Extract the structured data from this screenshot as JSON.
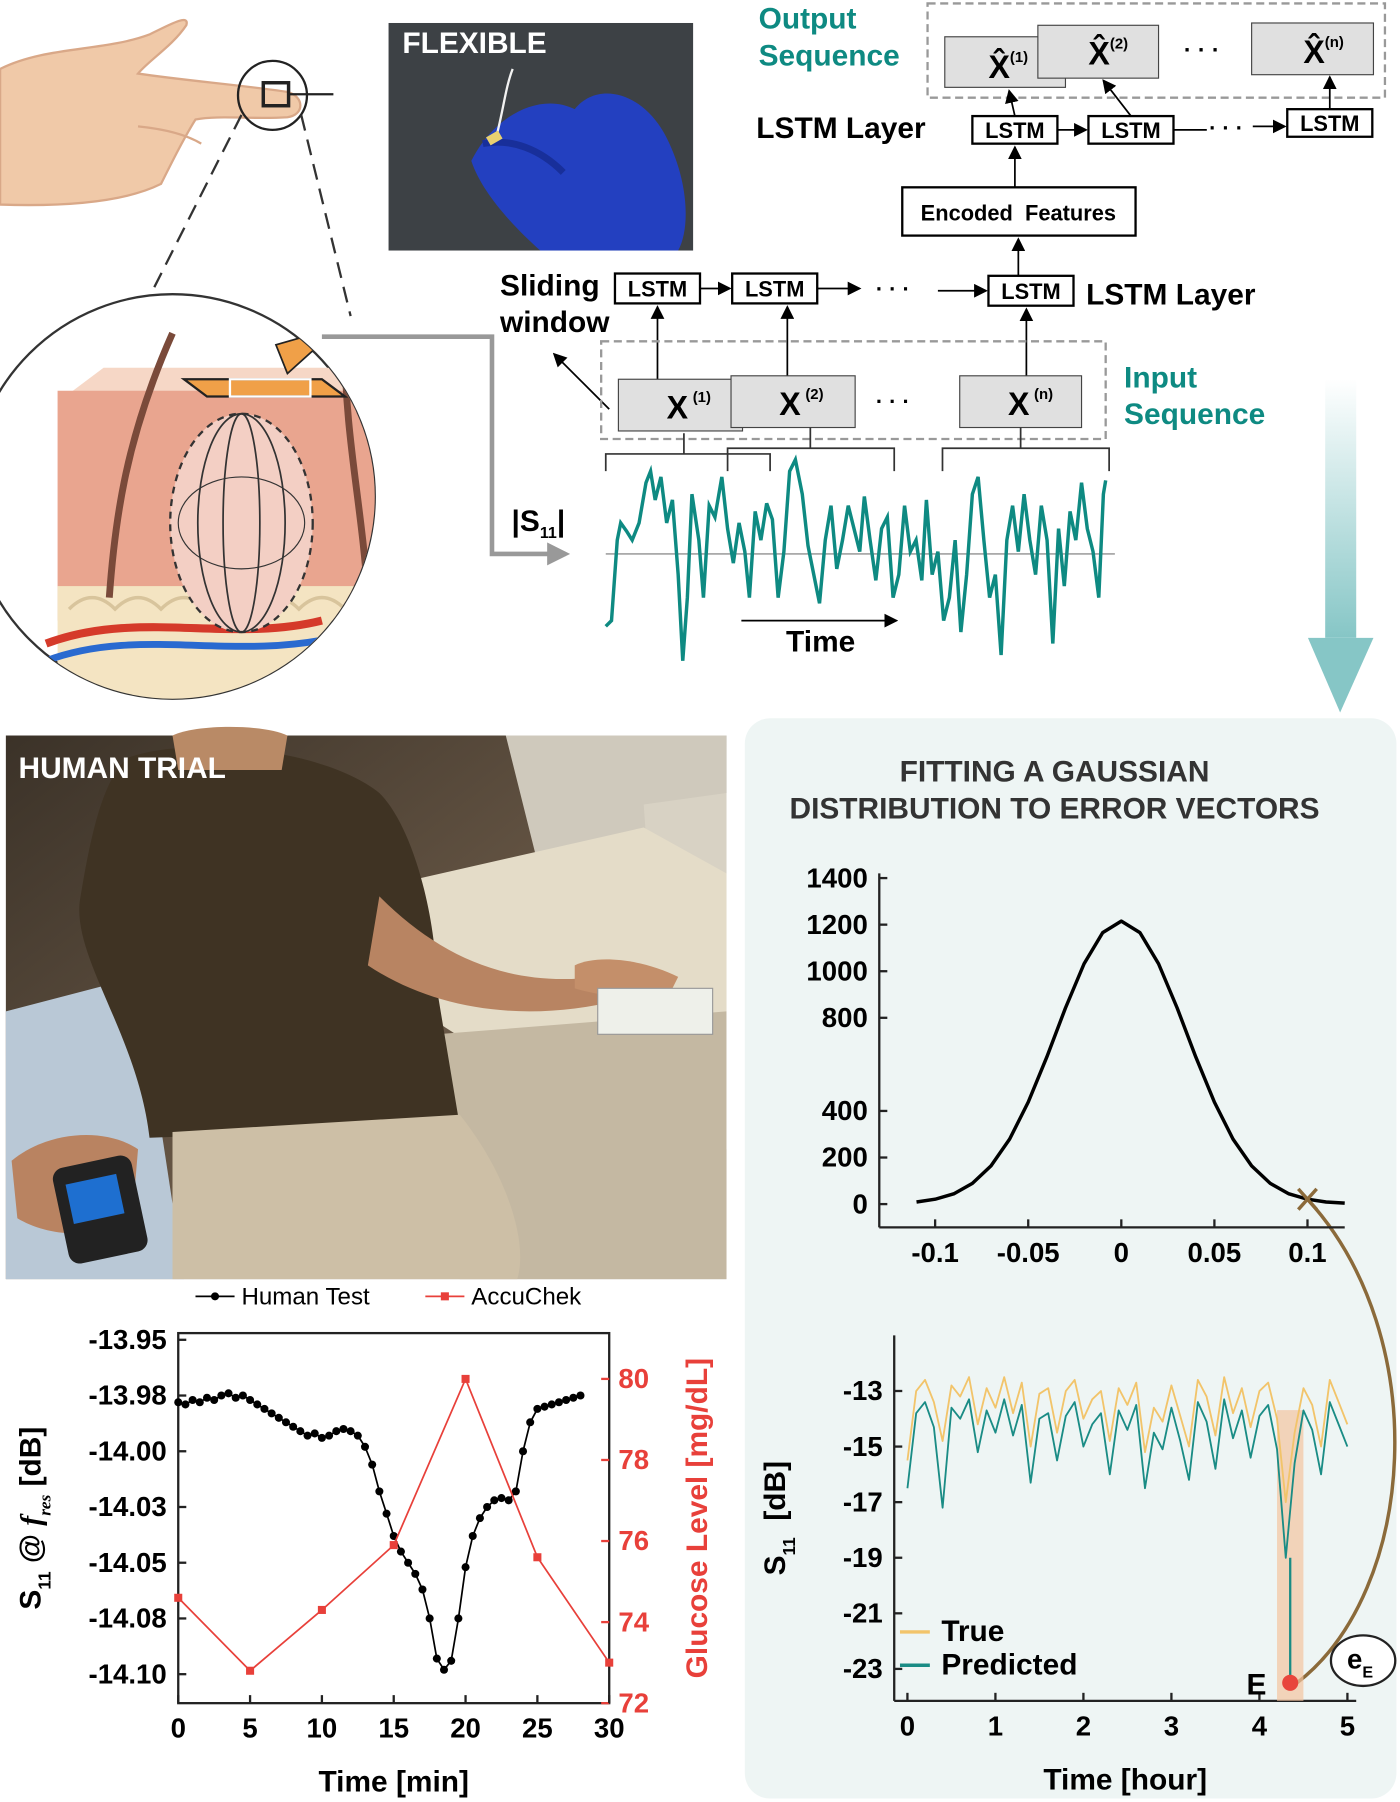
{
  "chart_data": [
    {
      "type": "line",
      "x_label": "Time [min]",
      "y_label": [
        "S",
        "11",
        " @ ",
        "f",
        "res",
        " [dB]"
      ],
      "y2_label": "Glucose Level [mg/dL]",
      "xlim": [
        0,
        30
      ],
      "xticks": [
        0,
        5,
        10,
        15,
        20,
        25,
        30
      ],
      "ylim": [
        -14.113,
        -13.947
      ],
      "yticks": [
        -13.95,
        {
          "value": -13.975,
          "label": "-13.98"
        },
        {
          "value": -14.0,
          "label": "-14.00"
        },
        {
          "value": -14.025,
          "label": "-14.03"
        },
        -14.05,
        {
          "value": -14.075,
          "label": "-14.08"
        },
        {
          "value": -14.1,
          "label": "-14.10"
        }
      ],
      "y2lim": [
        72,
        81.13
      ],
      "y2ticks": [
        72,
        74,
        76,
        78,
        80
      ],
      "y2_color": "#e8403a",
      "legend": "top",
      "series": [
        {
          "name": "Human Test",
          "color": "#000000",
          "marker": "circle",
          "x": [
            0,
            0.5,
            1,
            1.5,
            2,
            2.5,
            3,
            3.5,
            4,
            4.5,
            5,
            5.5,
            6,
            6.5,
            7,
            7.5,
            8,
            8.5,
            9,
            9.5,
            10,
            10.5,
            11,
            11.5,
            12,
            12.5,
            13,
            13.5,
            14,
            14.5,
            15,
            15.5,
            16,
            16.5,
            17,
            17.5,
            18,
            18.5,
            19,
            19.5,
            20,
            20.5,
            21,
            21.5,
            22,
            22.5,
            23,
            23.5,
            24,
            24.5,
            25,
            25.5,
            26,
            26.5,
            27,
            27.5,
            28
          ],
          "values": [
            -13.978,
            -13.979,
            -13.977,
            -13.978,
            -13.976,
            -13.977,
            -13.975,
            -13.974,
            -13.976,
            -13.975,
            -13.977,
            -13.979,
            -13.981,
            -13.983,
            -13.985,
            -13.987,
            -13.989,
            -13.991,
            -13.993,
            -13.992,
            -13.994,
            -13.993,
            -13.991,
            -13.99,
            -13.991,
            -13.993,
            -13.998,
            -14.006,
            -14.018,
            -14.028,
            -14.038,
            -14.045,
            -14.05,
            -14.055,
            -14.062,
            -14.075,
            -14.093,
            -14.098,
            -14.094,
            -14.075,
            -14.052,
            -14.038,
            -14.03,
            -14.025,
            -14.022,
            -14.021,
            -14.022,
            -14.018,
            -14.0,
            -13.987,
            -13.981,
            -13.98,
            -13.979,
            -13.978,
            -13.977,
            -13.976,
            -13.975
          ]
        },
        {
          "name": "AccuChek",
          "color": "#e8403a",
          "marker": "square",
          "axis": "y2",
          "x": [
            0,
            5,
            10,
            15,
            20,
            25,
            30
          ],
          "values": [
            74.6,
            72.8,
            74.3,
            75.9,
            80,
            75.6,
            73
          ]
        }
      ]
    },
    {
      "type": "line",
      "title": [
        "FITTING A GAUSSIAN",
        "DISTRIBUTION TO ERROR VECTORS"
      ],
      "x": [
        -0.11,
        -0.1,
        -0.09,
        -0.08,
        -0.07,
        -0.06,
        -0.05,
        -0.04,
        -0.03,
        -0.02,
        -0.01,
        0,
        0.01,
        0.02,
        0.03,
        0.04,
        0.05,
        0.06,
        0.07,
        0.08,
        0.09,
        0.1,
        0.11,
        0.12
      ],
      "xlim": [
        -0.13,
        0.12
      ],
      "xticks": [
        -0.1,
        -0.05,
        0,
        0.05,
        0.1
      ],
      "ylim": [
        -100,
        1420
      ],
      "yticks": [
        0,
        200,
        400,
        800,
        1000,
        1200,
        1400
      ],
      "series": [
        {
          "color": "#000000",
          "values": [
            9,
            21,
            44,
            89,
            164,
            279,
            438,
            632,
            842,
            1032,
            1166,
            1215,
            1166,
            1032,
            842,
            632,
            438,
            279,
            164,
            89,
            44,
            21,
            9,
            4
          ]
        }
      ],
      "marker": {
        "x": 0.1,
        "value": 21,
        "color": "#8b6a3a"
      }
    },
    {
      "type": "line",
      "x_label": "Time [hour]",
      "y_label": [
        "S",
        "11",
        "  [dB]"
      ],
      "x": [
        0,
        0.1,
        0.2,
        0.3,
        0.4,
        0.5,
        0.6,
        0.7,
        0.8,
        0.9,
        1,
        1.1,
        1.2,
        1.3,
        1.4,
        1.5,
        1.6,
        1.7,
        1.8,
        1.9,
        2,
        2.1,
        2.2,
        2.3,
        2.4,
        2.5,
        2.6,
        2.7,
        2.8,
        2.9,
        3,
        3.1,
        3.2,
        3.3,
        3.4,
        3.5,
        3.6,
        3.7,
        3.8,
        3.9,
        4,
        4.1,
        4.2,
        4.3,
        4.4,
        4.5,
        4.6,
        4.7,
        4.8,
        4.9,
        5
      ],
      "xlim": [
        -0.15,
        5.1
      ],
      "xticks": [
        0,
        1,
        2,
        3,
        4,
        5
      ],
      "ylim": [
        -24.15,
        -11
      ],
      "yticks": [
        -13,
        -15,
        -17,
        -19,
        -21,
        -23
      ],
      "legend": "lower left",
      "highlight_x": [
        4.2,
        4.5
      ],
      "series": [
        {
          "name": "True",
          "color": "#f2c46a",
          "values": [
            -15.5,
            -13.0,
            -12.6,
            -13.4,
            -14.8,
            -12.8,
            -13.2,
            -12.5,
            -14.2,
            -12.9,
            -13.6,
            -12.5,
            -13.8,
            -12.7,
            -15.0,
            -13.1,
            -12.9,
            -14.5,
            -13.0,
            -12.6,
            -14.0,
            -13.3,
            -13.0,
            -14.8,
            -12.9,
            -13.5,
            -12.7,
            -15.2,
            -13.6,
            -14.1,
            -12.8,
            -13.9,
            -15.0,
            -12.6,
            -13.2,
            -14.6,
            -12.5,
            -13.8,
            -12.9,
            -14.3,
            -13.0,
            -12.7,
            -14.0,
            -17.0,
            -14.5,
            -12.9,
            -13.5,
            -15.0,
            -12.6,
            -13.4,
            -14.2
          ]
        },
        {
          "name": "Predicted",
          "color": "#1a8c85",
          "values": [
            -16.5,
            -13.8,
            -13.4,
            -14.3,
            -17.2,
            -13.6,
            -14.0,
            -13.3,
            -15.2,
            -13.7,
            -14.5,
            -13.3,
            -14.6,
            -13.5,
            -16.3,
            -14.0,
            -13.8,
            -15.5,
            -13.9,
            -13.4,
            -15.0,
            -14.2,
            -13.8,
            -16.0,
            -13.7,
            -14.4,
            -13.5,
            -16.5,
            -14.5,
            -15.1,
            -13.6,
            -14.8,
            -16.2,
            -13.4,
            -14.1,
            -15.8,
            -13.3,
            -14.7,
            -13.7,
            -15.4,
            -13.9,
            -13.5,
            -15.1,
            -19.0,
            -15.6,
            -13.7,
            -14.4,
            -16.0,
            -13.4,
            -14.2,
            -15.0
          ]
        }
      ],
      "marker": {
        "x": 4.35,
        "value": -23.5,
        "label": "E",
        "color": "#e8453c"
      },
      "error_label": [
        "e",
        "E"
      ]
    }
  ],
  "diagram": {
    "photo_labels": [
      "FLEXIBLE",
      "HUMAN TRIAL"
    ],
    "output_sequence": [
      "Output",
      "Sequence"
    ],
    "output_boxes": [
      {
        "symbol": "X̂",
        "index": "(1)"
      },
      {
        "symbol": "X̂",
        "index": "(2)"
      },
      {
        "symbol": "X̂",
        "index": "(n)"
      }
    ],
    "input_boxes": [
      {
        "symbol": "X",
        "index": "(1)"
      },
      {
        "symbol": "X",
        "index": "(2)"
      },
      {
        "symbol": "X",
        "index": "(n)"
      }
    ],
    "top_lstm_cells": [
      "LSTM",
      "LSTM",
      "LSTM"
    ],
    "bottom_lstm_cells": [
      "LSTM",
      "LSTM",
      "LSTM"
    ],
    "lstm_layer_labels": [
      "LSTM Layer",
      "LSTM Layer"
    ],
    "encoded_features": "Encoded  Features",
    "sliding_window": [
      "Sliding",
      "window"
    ],
    "input_sequence": [
      "Input",
      "Sequence"
    ],
    "ellipses": [
      "· · ·",
      "· · ·",
      "· · ·",
      "· · ·"
    ],
    "signal_label": [
      "|S",
      "11",
      "|"
    ],
    "time_label": "Time"
  }
}
